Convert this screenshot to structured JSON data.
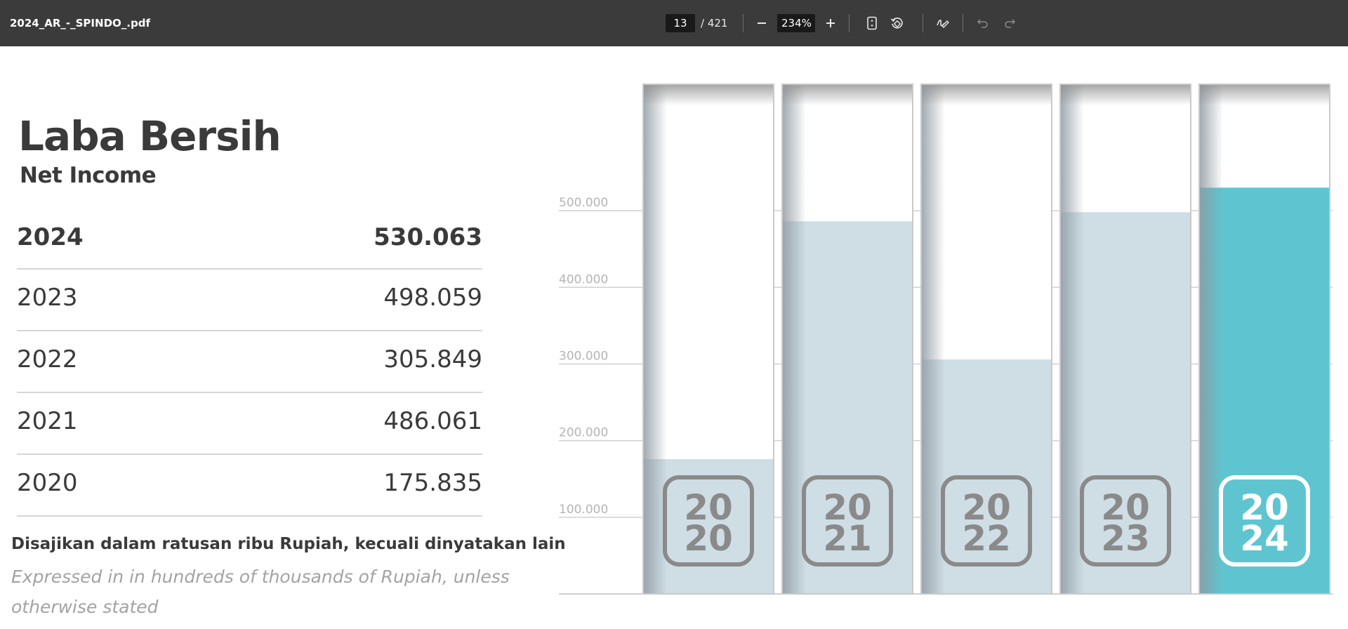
{
  "toolbar": {
    "title": "2024_AR_-_SPINDO_.pdf",
    "page_current": "13",
    "page_total": "/ 421",
    "zoom": "234%",
    "icons": [
      "minus-icon",
      "plus-icon",
      "fit-page-icon",
      "rotate-icon",
      "draw-icon",
      "undo-icon",
      "redo-icon"
    ]
  },
  "heading": {
    "title_id": "Laba Bersih",
    "title_en": "Net Income"
  },
  "table": {
    "rows": [
      {
        "year": "2024",
        "value": "530.063"
      },
      {
        "year": "2023",
        "value": "498.059"
      },
      {
        "year": "2022",
        "value": "305.849"
      },
      {
        "year": "2021",
        "value": "486.061"
      },
      {
        "year": "2020",
        "value": "175.835"
      }
    ]
  },
  "notes": {
    "id": "Disajikan dalam ratusan ribu Rupiah, kecuali dinyatakan lain",
    "en": "Expressed in in hundreds of thousands of Rupiah, unless otherwise stated"
  },
  "chart_data": {
    "type": "bar",
    "categories": [
      "2020",
      "2021",
      "2022",
      "2023",
      "2024"
    ],
    "badges": [
      [
        "20",
        "20"
      ],
      [
        "20",
        "21"
      ],
      [
        "20",
        "22"
      ],
      [
        "20",
        "23"
      ],
      [
        "20",
        "24"
      ]
    ],
    "values": [
      175.835,
      486.061,
      305.849,
      498.059,
      530.063
    ],
    "yticks": [
      100,
      200,
      300,
      400,
      500
    ],
    "ytick_labels": [
      "100.000",
      "200.000",
      "300.000",
      "400.000",
      "500.000"
    ],
    "ylim": [
      0,
      665
    ],
    "grid": true,
    "colors": {
      "default": "#cfdde5",
      "highlight": "#5ec5d0",
      "grid": "#d0d0d0",
      "tick_label": "#b5b5b5",
      "badge": "#8a8a8a"
    },
    "highlight_index": 4
  }
}
